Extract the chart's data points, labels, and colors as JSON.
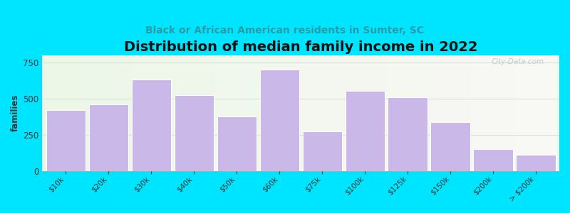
{
  "title": "Distribution of median family income in 2022",
  "subtitle": "Black or African American residents in Sumter, SC",
  "categories": [
    "$10k",
    "$20k",
    "$30k",
    "$40k",
    "$50k",
    "$60k",
    "$75k",
    "$100k",
    "$125k",
    "$150k",
    "$200k",
    "> $200k"
  ],
  "values": [
    420,
    460,
    630,
    525,
    375,
    700,
    275,
    555,
    510,
    340,
    150,
    115
  ],
  "bar_color": "#c9b8e8",
  "bar_edge_color": "#ffffff",
  "ylabel": "families",
  "ylim": [
    0,
    800
  ],
  "yticks": [
    0,
    250,
    500,
    750
  ],
  "background_outer": "#00e5ff",
  "background_plot_left": "#edf7e8",
  "background_plot_right": "#f8f8f5",
  "title_fontsize": 14,
  "subtitle_fontsize": 10,
  "subtitle_color": "#2a9aa8",
  "watermark": "City-Data.com"
}
